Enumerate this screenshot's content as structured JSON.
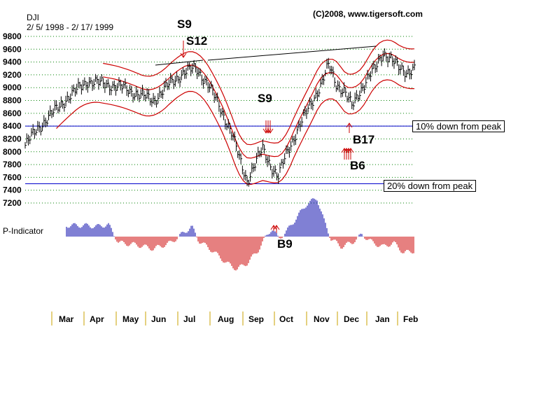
{
  "header": {
    "symbol": "DJI",
    "date_range": "2/ 5/ 1998 - 2/ 17/ 1999",
    "copyright": "(C)2008, www.tigersoft.com"
  },
  "indicator_label": "P-Indicator",
  "annotations": {
    "down10": "10% down from peak",
    "down20": "20% down from peak"
  },
  "signals": {
    "s9_top": "S9",
    "s12": "S12",
    "s9_mid": "S9",
    "b17": "B17",
    "b6": "B6",
    "b9": "B9"
  },
  "chart_data": {
    "type": "ohlc-bar",
    "title": "DJI",
    "subtitle": "2/ 5/ 1998 - 2/ 17/ 1999",
    "y_ticks": [
      9800,
      9600,
      9400,
      9200,
      9000,
      8800,
      8600,
      8400,
      8200,
      8000,
      7800,
      7600,
      7400,
      7200
    ],
    "ylim": [
      7200,
      9800
    ],
    "months": [
      "Mar",
      "Apr",
      "May",
      "Jun",
      "Jul",
      "Aug",
      "Sep",
      "Oct",
      "Nov",
      "Dec",
      "Jan",
      "Feb"
    ],
    "peak": 9337,
    "ten_pct_down_level": 8400,
    "twenty_pct_down_level": 7500,
    "price_path": [
      [
        0,
        8100
      ],
      [
        0.03,
        8350
      ],
      [
        0.07,
        8600
      ],
      [
        0.11,
        8850
      ],
      [
        0.16,
        9100
      ],
      [
        0.21,
        9050
      ],
      [
        0.25,
        9000
      ],
      [
        0.29,
        8900
      ],
      [
        0.33,
        8800
      ],
      [
        0.37,
        9050
      ],
      [
        0.41,
        9250
      ],
      [
        0.44,
        9300
      ],
      [
        0.47,
        9050
      ],
      [
        0.5,
        8700
      ],
      [
        0.53,
        8300
      ],
      [
        0.55,
        7900
      ],
      [
        0.57,
        7550
      ],
      [
        0.59,
        7800
      ],
      [
        0.61,
        8050
      ],
      [
        0.63,
        7800
      ],
      [
        0.65,
        7600
      ],
      [
        0.67,
        7950
      ],
      [
        0.7,
        8350
      ],
      [
        0.73,
        8700
      ],
      [
        0.76,
        9050
      ],
      [
        0.78,
        9350
      ],
      [
        0.8,
        9050
      ],
      [
        0.82,
        8950
      ],
      [
        0.84,
        8700
      ],
      [
        0.86,
        8950
      ],
      [
        0.88,
        9150
      ],
      [
        0.9,
        9300
      ],
      [
        0.92,
        9550
      ],
      [
        0.94,
        9450
      ],
      [
        0.96,
        9300
      ],
      [
        0.98,
        9250
      ],
      [
        1.0,
        9300
      ]
    ],
    "indicator_path": [
      [
        0,
        0.55
      ],
      [
        0.05,
        0.55
      ],
      [
        0.09,
        0.5
      ],
      [
        0.12,
        0.6
      ],
      [
        0.15,
        -0.3
      ],
      [
        0.2,
        -0.4
      ],
      [
        0.25,
        -0.6
      ],
      [
        0.3,
        -0.3
      ],
      [
        0.33,
        0.1
      ],
      [
        0.36,
        0.5
      ],
      [
        0.38,
        -0.2
      ],
      [
        0.42,
        -0.7
      ],
      [
        0.46,
        -1.3
      ],
      [
        0.49,
        -1.6
      ],
      [
        0.52,
        -1.3
      ],
      [
        0.55,
        -0.7
      ],
      [
        0.57,
        -0.1
      ],
      [
        0.59,
        0.4
      ],
      [
        0.61,
        -0.1
      ],
      [
        0.63,
        0.2
      ],
      [
        0.66,
        0.9
      ],
      [
        0.69,
        1.6
      ],
      [
        0.72,
        1.9
      ],
      [
        0.74,
        0.8
      ],
      [
        0.76,
        -0.1
      ],
      [
        0.79,
        -0.5
      ],
      [
        0.82,
        -0.3
      ],
      [
        0.85,
        0.1
      ],
      [
        0.88,
        -0.3
      ],
      [
        0.91,
        -0.5
      ],
      [
        0.94,
        -0.3
      ],
      [
        0.97,
        -0.8
      ],
      [
        1.0,
        -0.7
      ]
    ]
  },
  "colors": {
    "bars": "#000000",
    "band": "#cc0000",
    "grid": "#008000",
    "ref_line": "#0000cc",
    "ind_pos": "#0000aa",
    "ind_neg": "#cc0000",
    "axis_tick": "#c8a000"
  }
}
